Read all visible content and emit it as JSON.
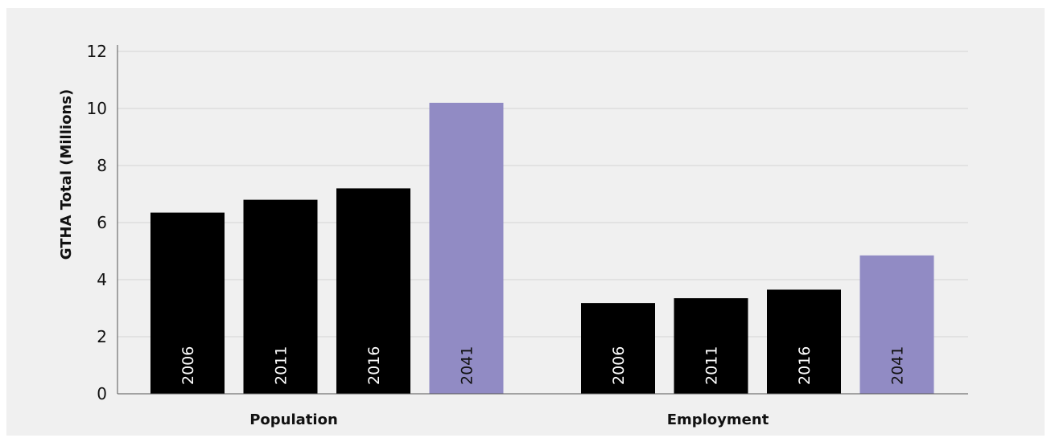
{
  "chart_data": {
    "type": "bar",
    "categories": [
      "Population",
      "Employment"
    ],
    "bar_labels": [
      "2006",
      "2011",
      "2016",
      "2041"
    ],
    "values": {
      "Population": [
        6.35,
        6.8,
        7.2,
        10.2
      ],
      "Employment": [
        3.18,
        3.35,
        3.65,
        4.85
      ]
    },
    "ylabel": "GTHA Total (Millions)",
    "ylim": [
      0,
      12
    ],
    "yticks": [
      "0",
      "2",
      "4",
      "6",
      "8",
      "10",
      "12"
    ],
    "grid": true,
    "colors": {
      "observed": "#000000",
      "projected": "#918bc4",
      "observed_label": "#ffffff",
      "projected_label": "#111111",
      "grid": "#d4d4d4",
      "axis": "#555555"
    }
  }
}
